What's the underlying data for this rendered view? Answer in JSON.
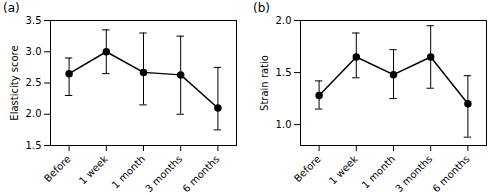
{
  "chart_data": [
    {
      "type": "line",
      "title": "(a)",
      "ylabel": "Elasticity score",
      "categories": [
        "Before",
        "1 week",
        "1 month",
        "3 months",
        "6 months"
      ],
      "values": [
        2.65,
        3.0,
        2.67,
        2.63,
        2.1
      ],
      "err_low": [
        0.35,
        0.35,
        0.52,
        0.63,
        0.35
      ],
      "err_high": [
        0.25,
        0.35,
        0.63,
        0.62,
        0.65
      ],
      "color": "#000000",
      "marker": "o",
      "line_style": "solid",
      "grid": false,
      "ylim": [
        1.5,
        3.5
      ],
      "yticks": [
        1.5,
        {
          "value": 2,
          "label": "2.0"
        },
        2.5,
        {
          "value": 3,
          "label": "3.0"
        },
        3.5
      ]
    },
    {
      "type": "line",
      "title": "(b)",
      "ylabel": "Strain ratio",
      "categories": [
        "Before",
        "1 week",
        "1 month",
        "3 months",
        "6 months"
      ],
      "values": [
        1.28,
        1.65,
        1.48,
        1.65,
        1.2
      ],
      "err_low": [
        0.13,
        0.2,
        0.23,
        0.3,
        0.32
      ],
      "err_high": [
        0.14,
        0.23,
        0.24,
        0.3,
        0.27
      ],
      "color": "#000000",
      "marker": "o",
      "line_style": "solid",
      "grid": false,
      "ylim": [
        0.8,
        2.0
      ],
      "yticks": [
        {
          "value": 1,
          "label": "1.0"
        },
        1.5,
        {
          "value": 2,
          "label": "2.0"
        }
      ]
    }
  ]
}
